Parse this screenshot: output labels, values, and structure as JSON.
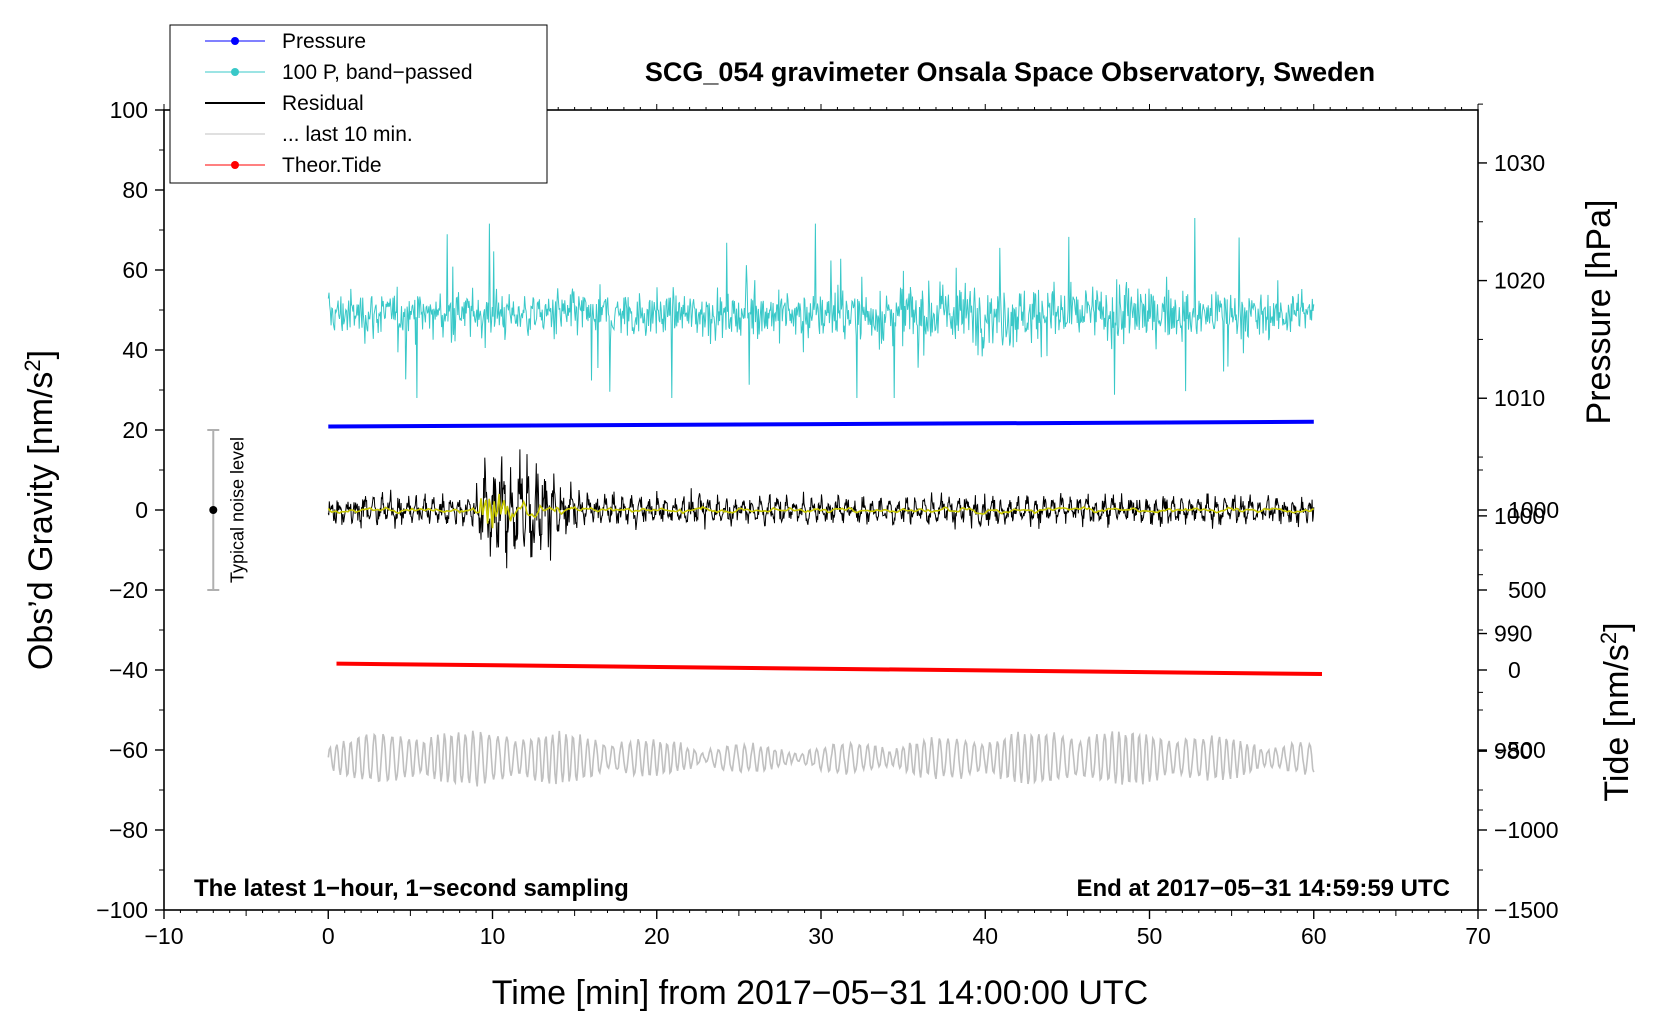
{
  "chart_data": {
    "type": "line",
    "title": "SCG_054 gravimeter Onsala Space Observatory, Sweden",
    "xlabel": "Time [min] from 2017−05−31 14:00:00 UTC",
    "ylabel_left": "Obs’d Gravity [nm/s",
    "ylabel_left_sup": "2",
    "ylabel_left_end": "]",
    "ylabel_right_top": "Pressure [hPa]",
    "ylabel_right_bottom": "Tide [nm/s",
    "ylabel_right_bottom_sup": "2",
    "ylabel_right_bottom_end": "]",
    "xlim": [
      -10,
      70
    ],
    "ylim": [
      -100,
      100
    ],
    "x_ticks": [
      -10,
      0,
      10,
      20,
      30,
      40,
      50,
      60,
      70
    ],
    "x_tick_labels": [
      "−10",
      "0",
      "10",
      "20",
      "30",
      "40",
      "50",
      "60",
      "70"
    ],
    "y_ticks": [
      100,
      80,
      60,
      40,
      20,
      0,
      -20,
      -40,
      -60,
      -80,
      -100
    ],
    "y_tick_labels": [
      "100",
      "80",
      "60",
      "40",
      "20",
      "0",
      "−20",
      "−40",
      "−60",
      "−80",
      "−100"
    ],
    "pressure_axis": {
      "ticks": [
        1030,
        1020,
        1010,
        1000,
        990,
        980
      ],
      "tick_labels": [
        "1030",
        "1020",
        "1010",
        "1000",
        "990",
        "980"
      ],
      "range": [
        966.5,
        1034.5
      ]
    },
    "tide_axis": {
      "ticks": [
        1000,
        500,
        0,
        -500,
        -1000,
        -1500
      ],
      "tick_labels": [
        "1000",
        "500",
        "0",
        "−500",
        "−1000",
        "−1500"
      ],
      "range": [
        -1500,
        3500
      ]
    },
    "series": [
      {
        "name": "Pressure",
        "axis": "pressure",
        "color": "#0000ff",
        "x": [
          0,
          30,
          60
        ],
        "values": [
          1007.6,
          1007.8,
          1008.0
        ]
      },
      {
        "name": "100 P, band−passed",
        "axis": "left",
        "color": "#39c8c8",
        "x": [
          0,
          60
        ],
        "mean": 49,
        "approx_range": [
          28,
          73
        ]
      },
      {
        "name": "Residual",
        "axis": "left",
        "color": "#000000",
        "x": [
          0,
          60
        ],
        "mean": 0,
        "approx_range": [
          -20,
          18
        ]
      },
      {
        "name": "... last 10 min.",
        "axis": "left",
        "color": "#c0c0c0",
        "x": [
          0,
          60
        ],
        "mean": -62,
        "approx_range": [
          -71,
          -55
        ]
      },
      {
        "name": "Theor.Tide",
        "axis": "tide",
        "color": "#ff0000",
        "x": [
          0.5,
          60.5
        ],
        "values": [
          40,
          -25
        ]
      }
    ],
    "smoothed_residual": {
      "color": "#c8c800"
    },
    "noise_bar": {
      "x": -7,
      "center": 0,
      "low": -20,
      "high": 20,
      "label": "Typical noise level"
    },
    "annotation_left": "The latest 1−hour, 1−second sampling",
    "annotation_right": "End at 2017−05−31 14:59:59 UTC",
    "legend_position": "top-left"
  }
}
